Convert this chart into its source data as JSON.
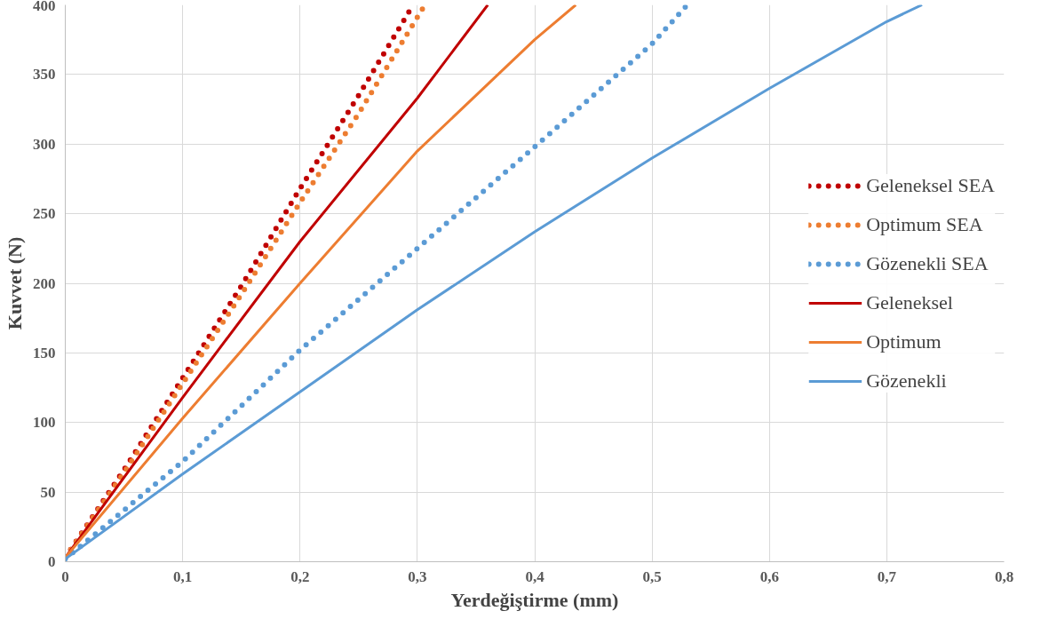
{
  "chart_data": {
    "type": "line",
    "xlabel": "Yerdeğiştirme (mm)",
    "ylabel": "Kuvvet (N)",
    "xlim": [
      0,
      0.8
    ],
    "ylim": [
      0,
      400
    ],
    "xticks": [
      {
        "value": 0,
        "label": "0"
      },
      {
        "value": 0.1,
        "label": "0,1"
      },
      {
        "value": 0.2,
        "label": "0,2"
      },
      {
        "value": 0.3,
        "label": "0,3"
      },
      {
        "value": 0.4,
        "label": "0,4"
      },
      {
        "value": 0.5,
        "label": "0,5"
      },
      {
        "value": 0.6,
        "label": "0,6"
      },
      {
        "value": 0.7,
        "label": "0,7"
      },
      {
        "value": 0.8,
        "label": "0,8"
      }
    ],
    "yticks": [
      0,
      50,
      100,
      150,
      200,
      250,
      300,
      350,
      400
    ],
    "grid": true,
    "legend": "right",
    "series": [
      {
        "name": "Geleneksel SEA",
        "color": "#c00000",
        "line_style": "dotted",
        "x": [
          0,
          0.05,
          0.1,
          0.15,
          0.2,
          0.25,
          0.295
        ],
        "values": [
          3,
          66,
          132,
          198,
          268,
          335,
          398
        ]
      },
      {
        "name": "Optimum SEA",
        "color": "#ed7d31",
        "line_style": "dotted",
        "x": [
          0,
          0.05,
          0.1,
          0.15,
          0.2,
          0.25,
          0.305
        ],
        "values": [
          3,
          64,
          128,
          192,
          258,
          322,
          398
        ]
      },
      {
        "name": "Gözenekli SEA",
        "color": "#5b9bd5",
        "line_style": "dotted",
        "x": [
          0,
          0.1,
          0.2,
          0.3,
          0.4,
          0.5,
          0.53
        ],
        "values": [
          2,
          72,
          152,
          225,
          298,
          372,
          400
        ]
      },
      {
        "name": "Geleneksel",
        "color": "#c00000",
        "line_style": "solid",
        "x": [
          0,
          0.1,
          0.2,
          0.3,
          0.36
        ],
        "values": [
          3,
          118,
          230,
          333,
          400
        ]
      },
      {
        "name": "Optimum",
        "color": "#ed7d31",
        "line_style": "solid",
        "x": [
          0,
          0.1,
          0.2,
          0.3,
          0.4,
          0.435
        ],
        "values": [
          3,
          103,
          200,
          295,
          375,
          400
        ]
      },
      {
        "name": "Gözenekli",
        "color": "#5b9bd5",
        "line_style": "solid",
        "x": [
          0,
          0.1,
          0.2,
          0.3,
          0.4,
          0.5,
          0.6,
          0.7,
          0.73
        ],
        "values": [
          2,
          63,
          122,
          181,
          237,
          290,
          340,
          388,
          400
        ]
      }
    ]
  }
}
